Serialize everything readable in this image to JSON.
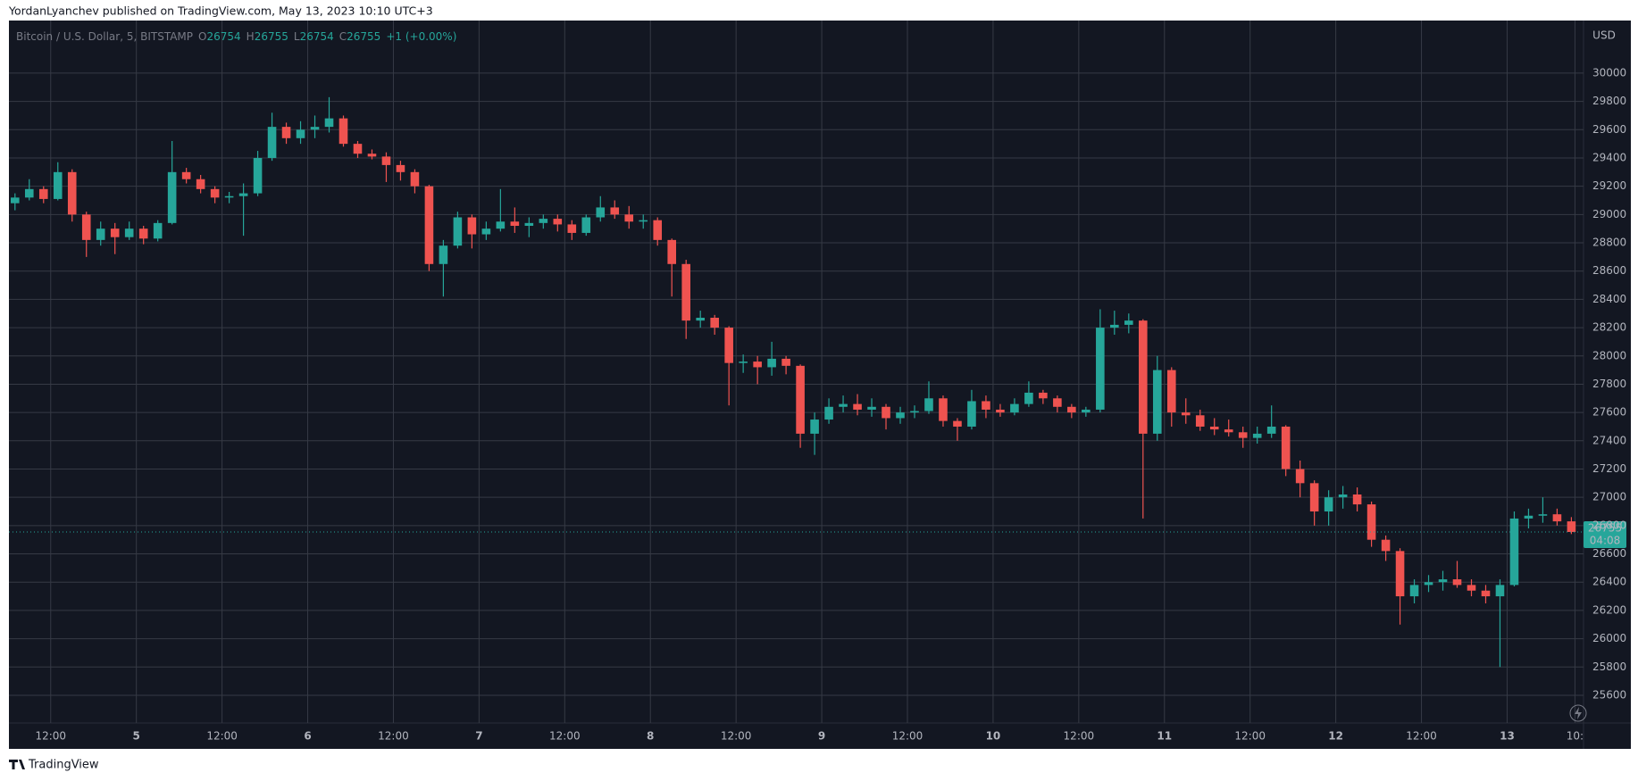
{
  "header": {
    "text": "YordanLyanchev published on TradingView.com, May 13, 2023 10:10 UTC+3"
  },
  "chart_data": {
    "type": "candlestick",
    "symbol": "Bitcoin / U.S. Dollar, 5, BITSTAMP",
    "ohlc_labels": [
      "O",
      "H",
      "L",
      "C"
    ],
    "ohlc": [
      26754,
      26755,
      26754,
      26755
    ],
    "change": "+1 (+0.00%)",
    "currency": "USD",
    "x": [
      7,
      9,
      11,
      13,
      15,
      17,
      19,
      21,
      23,
      25,
      27,
      29,
      31,
      33,
      35,
      37,
      39,
      41,
      43,
      45,
      47,
      49,
      51,
      53,
      55,
      57,
      59,
      61,
      63,
      65,
      67,
      69,
      71,
      73,
      75,
      77,
      79,
      81,
      83,
      85,
      87,
      89,
      91,
      93,
      95,
      97,
      99,
      101,
      103,
      105,
      107,
      109,
      111,
      113,
      115,
      117,
      119,
      121,
      123,
      125,
      127,
      129,
      131,
      133,
      135,
      137,
      139,
      141,
      143,
      145,
      147,
      149,
      151,
      153,
      155,
      157,
      159,
      161,
      163,
      165,
      167,
      169,
      171,
      173,
      175,
      177,
      179,
      181,
      183,
      185,
      187,
      189,
      191,
      193,
      195,
      197,
      199,
      201,
      203,
      205,
      207,
      209,
      211,
      213,
      215,
      217,
      219,
      221,
      223,
      225
    ],
    "open": [
      29080,
      29120,
      29180,
      29110,
      29300,
      29000,
      28820,
      28900,
      28840,
      28900,
      28830,
      28940,
      29300,
      29250,
      29180,
      29120,
      29130,
      29150,
      29400,
      29620,
      29540,
      29600,
      29620,
      29680,
      29500,
      29430,
      29410,
      29350,
      29300,
      29200,
      28650,
      28780,
      28980,
      28860,
      28900,
      28950,
      28920,
      28940,
      28970,
      28930,
      28870,
      28980,
      29050,
      29000,
      28950,
      28960,
      28820,
      28650,
      28250,
      28270,
      28200,
      27950,
      27960,
      27920,
      27980,
      27930,
      27450,
      27550,
      27640,
      27660,
      27620,
      27640,
      27560,
      27600,
      27610,
      27700,
      27540,
      27500,
      27680,
      27620,
      27600,
      27660,
      27740,
      27700,
      27640,
      27600,
      27620,
      28200,
      28220,
      28250,
      27450,
      27900,
      27600,
      27580,
      27500,
      27480,
      27460,
      27420,
      27450,
      27500,
      27200,
      27100,
      26900,
      27000,
      27020,
      26950,
      26700,
      26620,
      26300,
      26380,
      26400,
      26420,
      26380,
      26340,
      26300,
      26380,
      26850,
      26870,
      26880,
      26830
    ],
    "high": [
      29150,
      29250,
      29200,
      29370,
      29320,
      29020,
      28950,
      28940,
      28950,
      28920,
      28960,
      29520,
      29330,
      29280,
      29200,
      29160,
      29220,
      29450,
      29720,
      29650,
      29660,
      29700,
      29830,
      29700,
      29520,
      29460,
      29440,
      29380,
      29320,
      29210,
      28820,
      29020,
      29000,
      28950,
      29180,
      29050,
      28980,
      29000,
      29000,
      28960,
      29000,
      29130,
      29100,
      29060,
      29000,
      28980,
      28830,
      28680,
      28320,
      28290,
      28210,
      28010,
      28000,
      28100,
      28000,
      27940,
      27600,
      27700,
      27720,
      27730,
      27700,
      27660,
      27640,
      27650,
      27820,
      27720,
      27560,
      27760,
      27720,
      27660,
      27700,
      27820,
      27760,
      27720,
      27660,
      27640,
      28330,
      28320,
      28300,
      28260,
      28000,
      27920,
      27700,
      27620,
      27560,
      27550,
      27500,
      27500,
      27650,
      27510,
      27260,
      27120,
      27050,
      27080,
      27070,
      26970,
      26730,
      26640,
      26420,
      26450,
      26480,
      26550,
      26420,
      26380,
      26420,
      26900,
      26920,
      27000,
      26920,
      26860
    ],
    "low": [
      29030,
      29100,
      29080,
      29100,
      28950,
      28700,
      28780,
      28720,
      28820,
      28790,
      28810,
      28930,
      29220,
      29150,
      29080,
      29080,
      28850,
      29130,
      29380,
      29500,
      29500,
      29540,
      29580,
      29480,
      29400,
      29390,
      29230,
      29240,
      29150,
      28600,
      28420,
      28760,
      28760,
      28820,
      28880,
      28870,
      28840,
      28900,
      28880,
      28820,
      28850,
      28950,
      28970,
      28900,
      28900,
      28780,
      28420,
      28120,
      28200,
      28150,
      27650,
      27880,
      27800,
      27860,
      27870,
      27350,
      27300,
      27520,
      27600,
      27580,
      27570,
      27480,
      27520,
      27560,
      27590,
      27500,
      27400,
      27480,
      27560,
      27570,
      27580,
      27640,
      27660,
      27600,
      27560,
      27570,
      27600,
      28150,
      28160,
      26850,
      27400,
      27500,
      27520,
      27470,
      27440,
      27430,
      27350,
      27380,
      27420,
      27150,
      27000,
      26800,
      26800,
      26920,
      26900,
      26650,
      26550,
      26100,
      26250,
      26330,
      26340,
      26360,
      26300,
      26250,
      25800,
      26370,
      26780,
      26820,
      26800,
      26740
    ],
    "close": [
      29120,
      29180,
      29110,
      29300,
      29000,
      28820,
      28900,
      28840,
      28900,
      28830,
      28940,
      29300,
      29250,
      29180,
      29120,
      29130,
      29150,
      29400,
      29620,
      29540,
      29600,
      29620,
      29680,
      29500,
      29430,
      29410,
      29350,
      29300,
      29200,
      28650,
      28780,
      28980,
      28860,
      28900,
      28950,
      28920,
      28940,
      28970,
      28930,
      28870,
      28980,
      29050,
      29000,
      28950,
      28960,
      28820,
      28650,
      28250,
      28270,
      28200,
      27950,
      27960,
      27920,
      27980,
      27930,
      27450,
      27550,
      27640,
      27660,
      27620,
      27640,
      27560,
      27600,
      27610,
      27700,
      27540,
      27500,
      27680,
      27620,
      27600,
      27660,
      27740,
      27700,
      27640,
      27600,
      27620,
      28200,
      28220,
      28250,
      27450,
      27900,
      27600,
      27580,
      27500,
      27480,
      27460,
      27420,
      27450,
      27500,
      27200,
      27100,
      26900,
      27000,
      27020,
      26950,
      26700,
      26620,
      26300,
      26380,
      26400,
      26420,
      26380,
      26340,
      26300,
      26380,
      26850,
      26870,
      26880,
      26830,
      26755
    ],
    "up_color": "#26a69a",
    "down_color": "#ef5350",
    "last_price": 26755,
    "countdown": "04:08",
    "xlim": [
      6.15,
      226.7
    ],
    "ylim": [
      25404,
      30372
    ],
    "xticks": [
      {
        "value": 12,
        "label": "12:00"
      },
      {
        "value": 24,
        "label": "5"
      },
      {
        "value": 36,
        "label": "12:00"
      },
      {
        "value": 48,
        "label": "6"
      },
      {
        "value": 60,
        "label": "12:00"
      },
      {
        "value": 72,
        "label": "7"
      },
      {
        "value": 84,
        "label": "12:00"
      },
      {
        "value": 96,
        "label": "8"
      },
      {
        "value": 108,
        "label": "12:00"
      },
      {
        "value": 120,
        "label": "9"
      },
      {
        "value": 132,
        "label": "12:00"
      },
      {
        "value": 144,
        "label": "10"
      },
      {
        "value": 156,
        "label": "12:00"
      },
      {
        "value": 168,
        "label": "11"
      },
      {
        "value": 180,
        "label": "12:00"
      },
      {
        "value": 192,
        "label": "12"
      },
      {
        "value": 204,
        "label": "12:00"
      },
      {
        "value": 216,
        "label": "13"
      },
      {
        "value": 225.5,
        "label": "10:"
      }
    ],
    "yticks": [
      25600,
      25800,
      26000,
      26200,
      26400,
      26600,
      26800,
      27000,
      27200,
      27400,
      27600,
      27800,
      28000,
      28200,
      28400,
      28600,
      28800,
      29000,
      29200,
      29400,
      29600,
      29800,
      30000
    ],
    "grid": true
  },
  "footer": {
    "brand": "TradingView"
  }
}
